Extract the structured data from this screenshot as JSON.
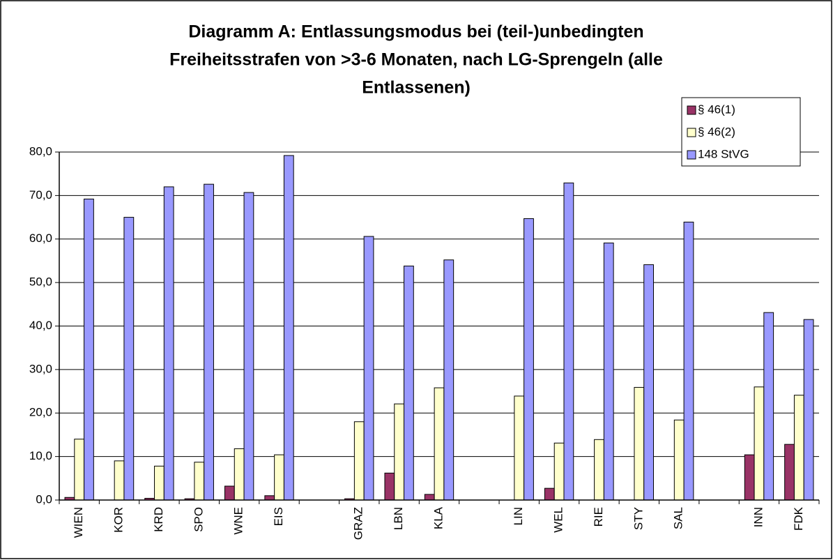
{
  "chart_data": {
    "type": "bar",
    "title": [
      "Diagramm A: Entlassungsmodus bei (teil-)unbedingten",
      "Freiheitsstrafen von >3-6 Monaten, nach LG-Sprengeln (alle",
      "Entlassenen)"
    ],
    "categories": [
      "WIEN",
      "KOR",
      "KRD",
      "SPO",
      "WNE",
      "EIS",
      null,
      "GRAZ",
      "LBN",
      "KLA",
      null,
      "LIN",
      "WEL",
      "RIE",
      "STY",
      "SAL",
      null,
      "INN",
      "FDK"
    ],
    "series": [
      {
        "name": "§ 46(1)",
        "color": "#993366",
        "values": [
          0.6,
          0,
          0.4,
          0.3,
          3.2,
          1.0,
          null,
          0.3,
          6.2,
          1.3,
          null,
          0,
          2.7,
          0,
          0,
          0,
          null,
          10.4,
          12.8
        ]
      },
      {
        "name": "§ 46(2)",
        "color": "#ffffcc",
        "values": [
          14.0,
          9.0,
          7.8,
          8.7,
          11.8,
          10.4,
          null,
          18.0,
          22.1,
          25.8,
          null,
          23.9,
          13.1,
          13.9,
          25.9,
          18.4,
          null,
          26.0,
          24.1
        ]
      },
      {
        "name": "148 StVG",
        "color": "#9999ff",
        "values": [
          69.2,
          65.0,
          72.0,
          72.6,
          70.7,
          79.2,
          null,
          60.6,
          53.8,
          55.2,
          null,
          64.7,
          72.9,
          59.1,
          54.1,
          63.9,
          null,
          43.1,
          41.5
        ]
      }
    ],
    "ylim": [
      0,
      80
    ],
    "yticks": [
      {
        "value": 0,
        "label": "0,0"
      },
      {
        "value": 10,
        "label": "10,0"
      },
      {
        "value": 20,
        "label": "20,0"
      },
      {
        "value": 30,
        "label": "30,0"
      },
      {
        "value": 40,
        "label": "40,0"
      },
      {
        "value": 50,
        "label": "50,0"
      },
      {
        "value": 60,
        "label": "60,0"
      },
      {
        "value": 70,
        "label": "70,0"
      },
      {
        "value": 80,
        "label": "80,0"
      }
    ],
    "grid": true,
    "legend": "top-right"
  }
}
